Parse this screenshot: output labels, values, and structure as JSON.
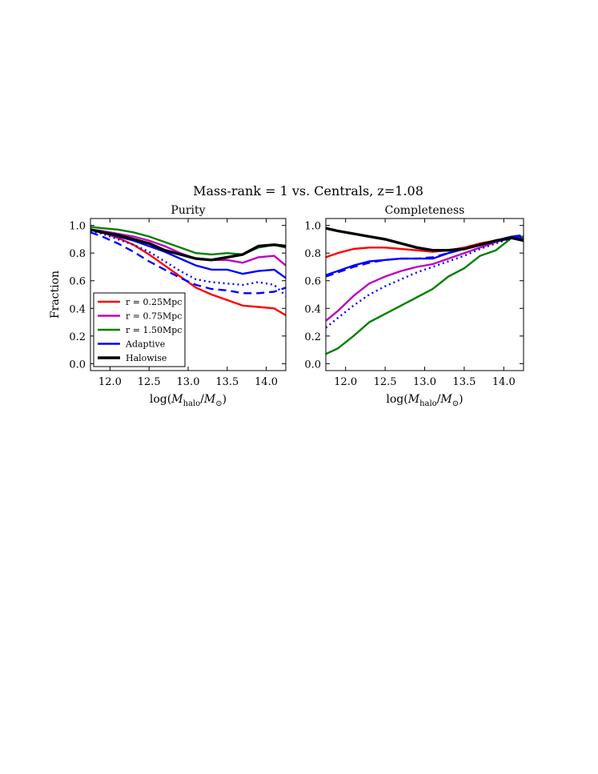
{
  "figure_title": "Mass-rank = 1 vs. Centrals, z=1.08",
  "colors": {
    "r025": "#ff0000",
    "r075": "#bf00bf",
    "r150": "#008000",
    "adaptive": "#0000ff",
    "halowise": "#000000"
  },
  "chart_data": [
    {
      "type": "line",
      "title": "Purity",
      "xlabel": "log(M_halo/M_⊙)",
      "ylabel": "Fraction",
      "xlim": [
        11.75,
        14.25
      ],
      "ylim": [
        -0.05,
        1.05
      ],
      "xticks": [
        "12.0",
        "12.5",
        "13.0",
        "13.5",
        "14.0"
      ],
      "yticks": [
        "0.0",
        "0.2",
        "0.4",
        "0.6",
        "0.8",
        "1.0"
      ],
      "legend_position": "lower-left",
      "legend": [
        "r = 0.25Mpc",
        "r = 0.75Mpc",
        "r = 1.50Mpc",
        "Adaptive",
        "Halowise"
      ],
      "x": [
        11.75,
        11.9,
        12.1,
        12.3,
        12.5,
        12.7,
        12.9,
        13.1,
        13.3,
        13.5,
        13.7,
        13.9,
        14.1,
        14.25
      ],
      "series": [
        {
          "name": "r = 0.25Mpc",
          "key": "r025",
          "style": "solid",
          "values": [
            0.97,
            0.95,
            0.91,
            0.86,
            0.79,
            0.71,
            0.63,
            0.55,
            0.5,
            0.46,
            0.42,
            0.41,
            0.4,
            0.35
          ]
        },
        {
          "name": "r = 0.75Mpc",
          "key": "r075",
          "style": "solid",
          "values": [
            0.97,
            0.96,
            0.94,
            0.92,
            0.89,
            0.85,
            0.8,
            0.76,
            0.75,
            0.75,
            0.73,
            0.77,
            0.78,
            0.71
          ]
        },
        {
          "name": "r = 1.50Mpc",
          "key": "r150",
          "style": "solid",
          "values": [
            0.99,
            0.98,
            0.97,
            0.95,
            0.92,
            0.88,
            0.84,
            0.8,
            0.79,
            0.8,
            0.79,
            0.84,
            0.86,
            0.84
          ]
        },
        {
          "name": "Adaptive",
          "key": "adaptive",
          "style": "solid",
          "values": [
            0.97,
            0.95,
            0.92,
            0.89,
            0.85,
            0.81,
            0.76,
            0.71,
            0.68,
            0.68,
            0.65,
            0.67,
            0.68,
            0.62
          ]
        },
        {
          "name": "Adaptive (dotted)",
          "key": "adaptive",
          "style": "dotted",
          "values": [
            0.96,
            0.94,
            0.9,
            0.86,
            0.81,
            0.74,
            0.67,
            0.61,
            0.59,
            0.58,
            0.57,
            0.59,
            0.57,
            0.49
          ]
        },
        {
          "name": "Adaptive (dashed)",
          "key": "adaptive",
          "style": "dashed",
          "values": [
            0.95,
            0.92,
            0.87,
            0.81,
            0.74,
            0.68,
            0.62,
            0.57,
            0.54,
            0.53,
            0.51,
            0.51,
            0.52,
            0.55
          ]
        },
        {
          "name": "Halowise",
          "key": "halowise",
          "style": "solid",
          "width": 3.4,
          "values": [
            0.97,
            0.95,
            0.93,
            0.9,
            0.87,
            0.82,
            0.79,
            0.76,
            0.75,
            0.77,
            0.79,
            0.85,
            0.86,
            0.85
          ]
        }
      ]
    },
    {
      "type": "line",
      "title": "Completeness",
      "xlabel": "log(M_halo/M_⊙)",
      "ylabel": "",
      "xlim": [
        11.75,
        14.25
      ],
      "ylim": [
        -0.05,
        1.05
      ],
      "xticks": [
        "12.0",
        "12.5",
        "13.0",
        "13.5",
        "14.0"
      ],
      "yticks": [
        "0.0",
        "0.2",
        "0.4",
        "0.6",
        "0.8",
        "1.0"
      ],
      "x": [
        11.75,
        11.9,
        12.1,
        12.3,
        12.5,
        12.7,
        12.9,
        13.1,
        13.3,
        13.5,
        13.7,
        13.9,
        14.1,
        14.25
      ],
      "series": [
        {
          "name": "r = 0.25Mpc",
          "key": "r025",
          "style": "solid",
          "values": [
            0.77,
            0.8,
            0.83,
            0.84,
            0.84,
            0.83,
            0.82,
            0.81,
            0.82,
            0.84,
            0.87,
            0.89,
            0.91,
            0.92
          ]
        },
        {
          "name": "r = 0.75Mpc",
          "key": "r075",
          "style": "solid",
          "values": [
            0.31,
            0.38,
            0.49,
            0.58,
            0.63,
            0.67,
            0.7,
            0.72,
            0.76,
            0.8,
            0.84,
            0.88,
            0.91,
            0.91
          ]
        },
        {
          "name": "r = 1.50Mpc",
          "key": "r150",
          "style": "solid",
          "values": [
            0.07,
            0.11,
            0.2,
            0.3,
            0.36,
            0.42,
            0.48,
            0.54,
            0.63,
            0.69,
            0.78,
            0.82,
            0.91,
            0.92
          ]
        },
        {
          "name": "Adaptive",
          "key": "adaptive",
          "style": "solid",
          "values": [
            0.64,
            0.67,
            0.71,
            0.74,
            0.75,
            0.76,
            0.76,
            0.76,
            0.8,
            0.83,
            0.86,
            0.89,
            0.92,
            0.9
          ]
        },
        {
          "name": "Adaptive (dotted)",
          "key": "adaptive",
          "style": "dotted",
          "values": [
            0.26,
            0.33,
            0.42,
            0.5,
            0.56,
            0.61,
            0.66,
            0.7,
            0.74,
            0.78,
            0.83,
            0.87,
            0.91,
            0.92
          ]
        },
        {
          "name": "Adaptive (dashed)",
          "key": "adaptive",
          "style": "dashed",
          "values": [
            0.63,
            0.66,
            0.7,
            0.73,
            0.75,
            0.76,
            0.76,
            0.77,
            0.8,
            0.83,
            0.86,
            0.89,
            0.92,
            0.93
          ]
        },
        {
          "name": "Halowise",
          "key": "halowise",
          "style": "solid",
          "width": 3.4,
          "values": [
            0.98,
            0.96,
            0.94,
            0.92,
            0.9,
            0.87,
            0.84,
            0.82,
            0.82,
            0.83,
            0.86,
            0.89,
            0.91,
            0.89
          ]
        }
      ]
    }
  ]
}
